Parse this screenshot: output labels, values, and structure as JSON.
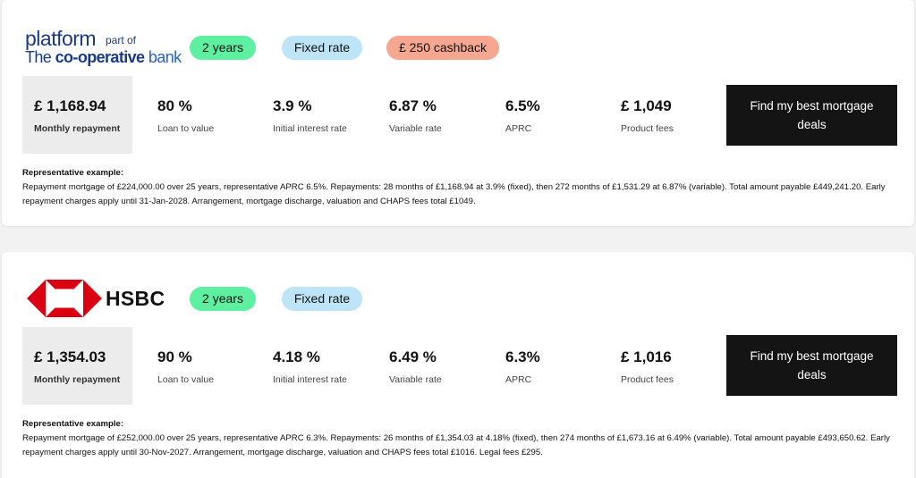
{
  "products": [
    {
      "lender_logo": {
        "name": "platform",
        "part_of": "part of",
        "the": "The",
        "coop": "co-operative",
        "bank": "bank"
      },
      "tags": [
        "2 years",
        "Fixed rate",
        "£ 250 cashback"
      ],
      "monthly_repayment": {
        "value": "£ 1,168.94",
        "label": "Monthly repayment"
      },
      "stats": [
        {
          "value": "80 %",
          "label": "Loan to value"
        },
        {
          "value": "3.9 %",
          "label": "Initial interest rate"
        },
        {
          "value": "6.87 %",
          "label": "Variable rate"
        },
        {
          "value": "6.5%",
          "label": "APRC"
        },
        {
          "value": "£ 1,049",
          "label": "Product fees"
        }
      ],
      "cta_label": "Find my best mortgage deals",
      "representative_title": "Representative example:",
      "representative_text": "Repayment mortgage of £224,000.00 over 25 years, representative APRC 6.5%. Repayments: 28 months of £1,168.94 at 3.9% (fixed), then 272 months of £1,531.29 at 6.87% (variable). Total amount payable £449,241.20. Early repayment charges apply until 31-Jan-2028. Arrangement, mortgage discharge, valuation and CHAPS fees total £1049."
    },
    {
      "lender_logo": {
        "name": "HSBC"
      },
      "tags": [
        "2 years",
        "Fixed rate"
      ],
      "monthly_repayment": {
        "value": "£ 1,354.03",
        "label": "Monthly repayment"
      },
      "stats": [
        {
          "value": "90 %",
          "label": "Loan to value"
        },
        {
          "value": "4.18 %",
          "label": "Initial interest rate"
        },
        {
          "value": "6.49 %",
          "label": "Variable rate"
        },
        {
          "value": "6.3%",
          "label": "APRC"
        },
        {
          "value": "£ 1,016",
          "label": "Product fees"
        }
      ],
      "cta_label": "Find my best mortgage deals",
      "representative_title": "Representative example:",
      "representative_text": "Repayment mortgage of £252,000.00 over 25 years, representative APRC 6.3%. Repayments: 26 months of £1,354.03 at 4.18% (fixed), then 274 months of £1,673.16 at 6.49% (variable). Total amount payable £493,650.62. Early repayment charges apply until 30-Nov-2027. Arrangement, mortgage discharge, valuation and CHAPS fees total £1016. Legal fees £295."
    }
  ],
  "colors": {
    "tag_term": "#5df0a0",
    "tag_rate": "#bde4f7",
    "tag_cashback": "#f7a690",
    "cta_bg": "#141414",
    "hsbc_red": "#db0011",
    "platform_blue": "#1b3a86"
  }
}
